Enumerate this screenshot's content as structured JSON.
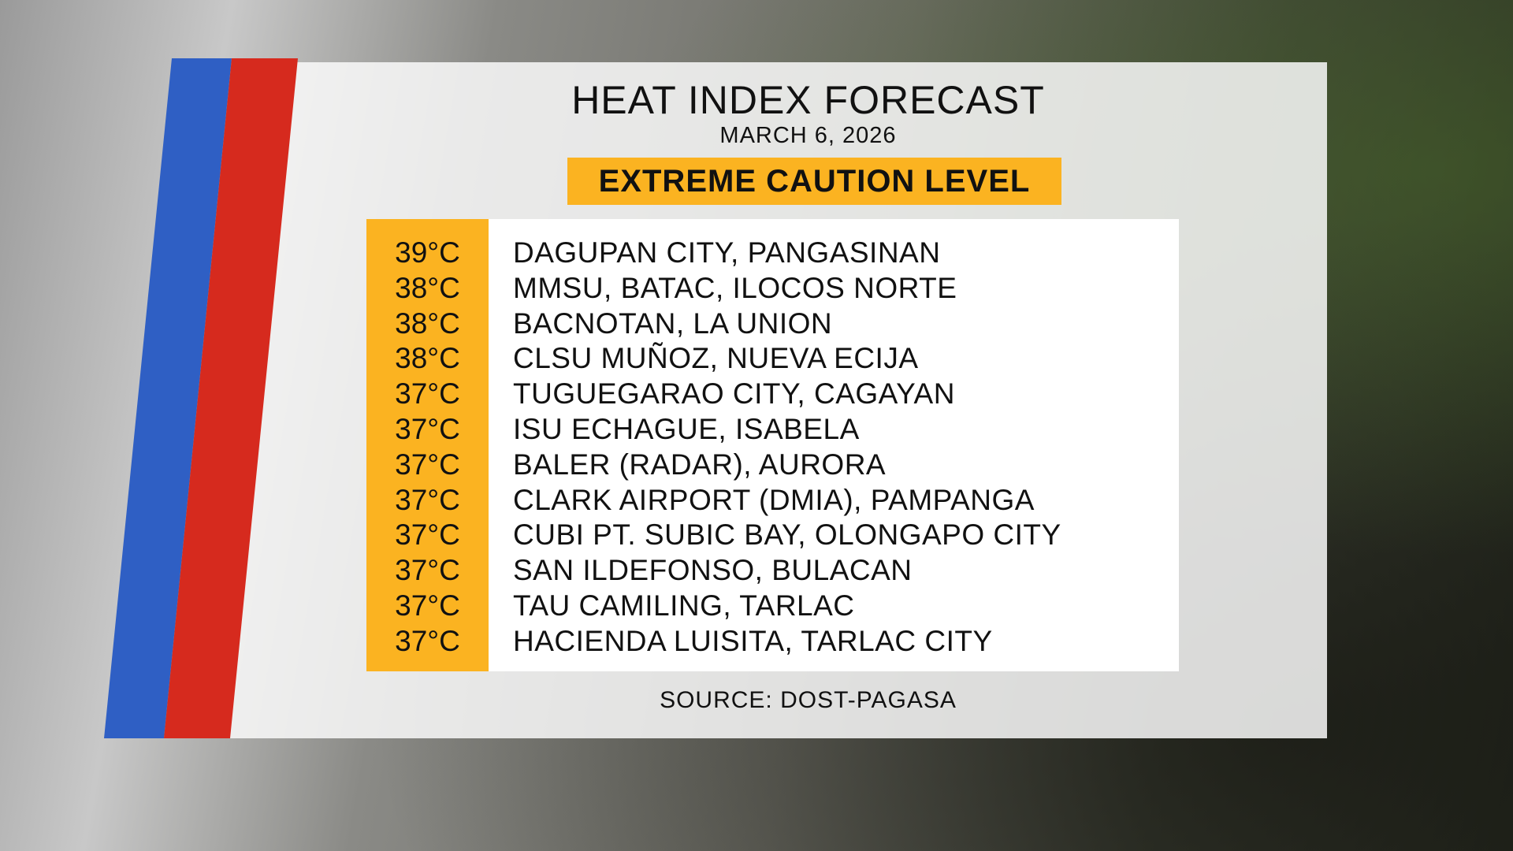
{
  "header": {
    "title": "HEAT INDEX FORECAST",
    "date": "MARCH 6, 2026",
    "level": "EXTREME CAUTION LEVEL"
  },
  "table": {
    "rows": [
      [
        "39°C",
        "DAGUPAN CITY, PANGASINAN"
      ],
      [
        "38°C",
        "MMSU, BATAC, ILOCOS NORTE"
      ],
      [
        "38°C",
        "BACNOTAN, LA UNION"
      ],
      [
        "38°C",
        "CLSU MUÑOZ, NUEVA ECIJA"
      ],
      [
        "37°C",
        "TUGUEGARAO CITY, CAGAYAN"
      ],
      [
        "37°C",
        "ISU ECHAGUE, ISABELA"
      ],
      [
        "37°C",
        "BALER (RADAR), AURORA"
      ],
      [
        "37°C",
        "CLARK AIRPORT (DMIA), PAMPANGA"
      ],
      [
        "37°C",
        "CUBI PT. SUBIC BAY, OLONGAPO CITY"
      ],
      [
        "37°C",
        "SAN ILDEFONSO, BULACAN"
      ],
      [
        "37°C",
        "TAU CAMILING, TARLAC"
      ],
      [
        "37°C",
        "HACIENDA LUISITA, TARLAC CITY"
      ]
    ]
  },
  "source": "SOURCE: DOST-PAGASA"
}
